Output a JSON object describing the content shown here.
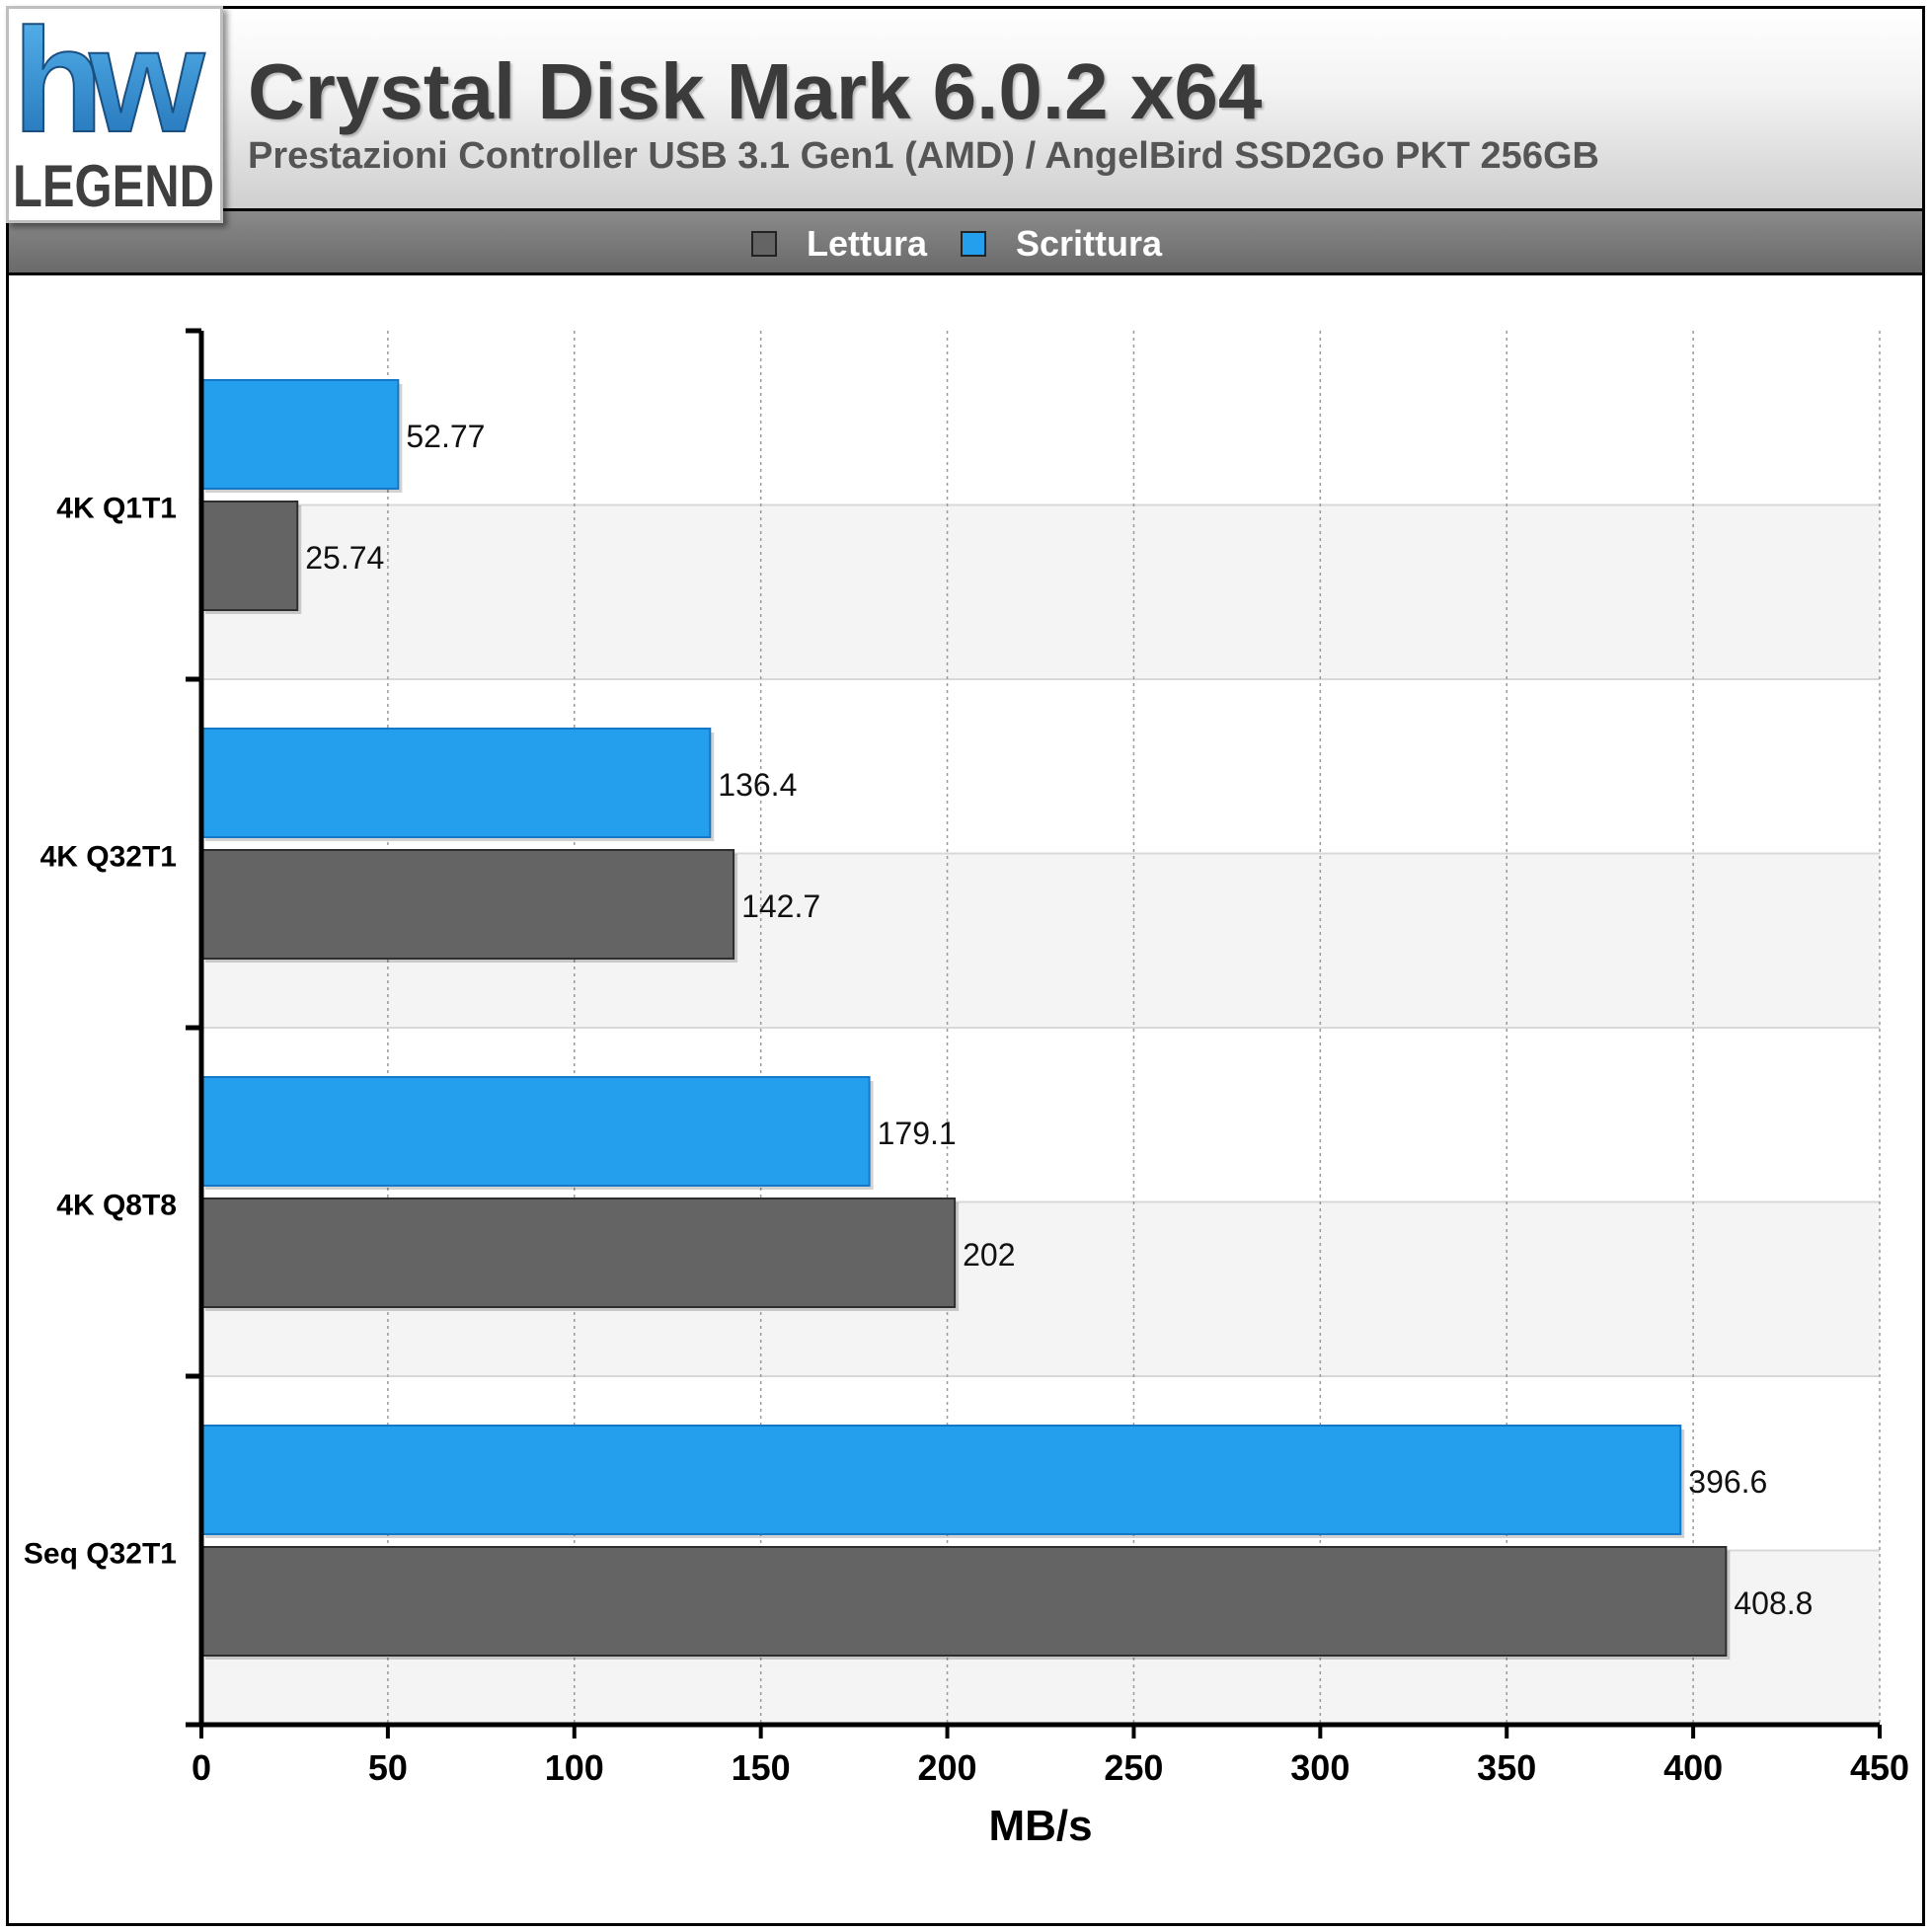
{
  "header": {
    "logo_text_top": "hw",
    "logo_text_bottom": "LEGEND",
    "title": "Crystal Disk Mark 6.0.2 x64",
    "subtitle": "Prestazioni Controller USB 3.1 Gen1 (AMD) / AngelBird SSD2Go PKT 256GB"
  },
  "colors": {
    "lettura": "#646464",
    "scrittura": "#239fee"
  },
  "chart_data": {
    "type": "bar",
    "orientation": "horizontal",
    "categories": [
      "4K Q1T1",
      "4K Q32T1",
      "4K Q8T8",
      "Seq Q32T1"
    ],
    "series": [
      {
        "name": "Scrittura",
        "values": [
          52.77,
          136.4,
          179.1,
          396.6
        ]
      },
      {
        "name": "Lettura",
        "values": [
          25.74,
          142.7,
          202,
          408.8
        ]
      }
    ],
    "value_labels": {
      "Scrittura": [
        "52.77",
        "136.4",
        "179.1",
        "396.6"
      ],
      "Lettura": [
        "25.74",
        "142.7",
        "202",
        "408.8"
      ]
    },
    "legend": [
      "Lettura",
      "Scrittura"
    ],
    "legend_position": "top",
    "xlabel": "MB/s",
    "xlim": [
      0,
      450
    ],
    "xticks": [
      0,
      50,
      100,
      150,
      200,
      250,
      300,
      350,
      400,
      450
    ],
    "grid": true
  }
}
